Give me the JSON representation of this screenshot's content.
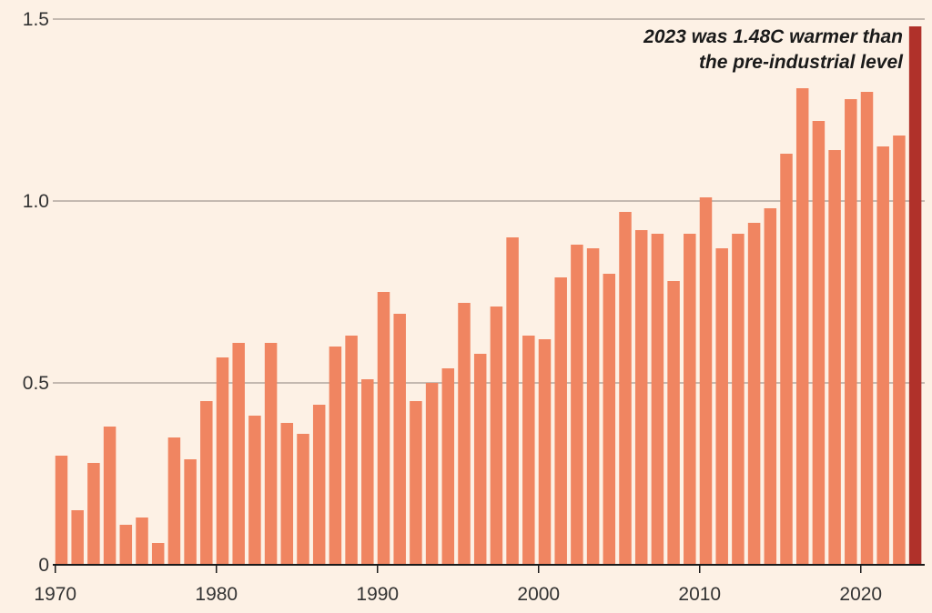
{
  "chart_data": {
    "type": "bar",
    "title": "",
    "xlabel": "",
    "ylabel": "",
    "ylim": [
      0,
      1.5
    ],
    "y_ticks": [
      0,
      0.5,
      1.0,
      1.5
    ],
    "y_tick_labels": [
      "0",
      "0.5",
      "1.0",
      "1.5"
    ],
    "x_tick_labels": [
      "1970",
      "1980",
      "1990",
      "2000",
      "2010",
      "2020"
    ],
    "x_tick_values": [
      1970,
      1980,
      1990,
      2000,
      2010,
      2020
    ],
    "grid": true,
    "legend": "none",
    "colors": {
      "background": "#fdf1e5",
      "bar": "#f08561",
      "highlight_bar": "#b0312a",
      "gridline": "#8a817c",
      "axis": "#1a1a1a",
      "text": "#333333"
    },
    "categories": [
      1970,
      1971,
      1972,
      1973,
      1974,
      1975,
      1976,
      1977,
      1978,
      1979,
      1980,
      1981,
      1982,
      1983,
      1984,
      1985,
      1986,
      1987,
      1988,
      1989,
      1990,
      1991,
      1992,
      1993,
      1994,
      1995,
      1996,
      1997,
      1998,
      1999,
      2000,
      2001,
      2002,
      2003,
      2004,
      2005,
      2006,
      2007,
      2008,
      2009,
      2010,
      2011,
      2012,
      2013,
      2014,
      2015,
      2016,
      2017,
      2018,
      2019,
      2020,
      2021,
      2022,
      2023
    ],
    "values": [
      0.3,
      0.15,
      0.28,
      0.38,
      0.11,
      0.13,
      0.06,
      0.35,
      0.29,
      0.45,
      0.57,
      0.61,
      0.41,
      0.61,
      0.39,
      0.36,
      0.44,
      0.6,
      0.63,
      0.51,
      0.75,
      0.69,
      0.45,
      0.5,
      0.54,
      0.72,
      0.58,
      0.71,
      0.9,
      0.63,
      0.62,
      0.79,
      0.88,
      0.87,
      0.8,
      0.97,
      0.92,
      0.91,
      0.78,
      0.91,
      1.01,
      0.87,
      0.91,
      0.94,
      0.98,
      1.13,
      1.31,
      1.22,
      1.14,
      1.28,
      1.3,
      1.15,
      1.18,
      1.48
    ],
    "highlight_category": 2023,
    "annotation": {
      "line1": "2023 was 1.48C warmer than",
      "line2": "the pre-industrial level"
    }
  }
}
